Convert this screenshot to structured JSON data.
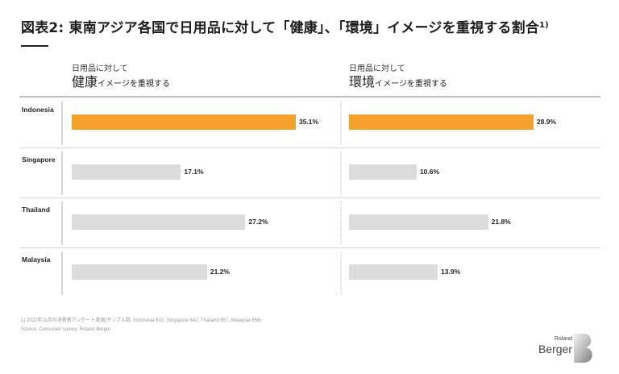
{
  "title": {
    "main": "図表2: 東南アジア各国で日用品に対して「健康」、「環境」イメージを重視する割合",
    "footnote_marker": "1)"
  },
  "colors": {
    "highlight": "#F5A12B",
    "default": "#DCDCDC"
  },
  "chart_data": {
    "type": "bar",
    "orientation": "horizontal",
    "title": "図表2: 東南アジア各国で日用品に対して「健康」、「環境」イメージを重視する割合1)",
    "categories": [
      "Indonesia",
      "Singapore",
      "Thailand",
      "Malaysia"
    ],
    "unit": "%",
    "xlim": [
      0,
      40
    ],
    "series": [
      {
        "name": "健康",
        "header_sub": "日用品に対して",
        "header_main": "健康",
        "header_rest": "イメージを重視する",
        "values": [
          35.1,
          17.1,
          27.2,
          21.2
        ],
        "labels": [
          "35.1%",
          "17.1%",
          "27.2%",
          "21.2%"
        ],
        "highlight": [
          true,
          false,
          false,
          false
        ]
      },
      {
        "name": "環境",
        "header_sub": "日用品に対して",
        "header_main": "環境",
        "header_rest": "イメージを重視する",
        "values": [
          28.9,
          10.6,
          21.8,
          13.9
        ],
        "labels": [
          "28.9%",
          "10.6%",
          "21.8%",
          "13.9%"
        ],
        "highlight": [
          true,
          false,
          false,
          false
        ]
      }
    ]
  },
  "footnotes": {
    "note1": "1)  2022年11月の消費者アンケート実施(サンプル数: Indonesia 610, Singapore 642, Thailand 657, Malaysia 656)",
    "source": "Source: Consumer survey; Roland Berger"
  },
  "logo": {
    "line1": "Roland",
    "line2": "Berger",
    "mark": "B"
  }
}
